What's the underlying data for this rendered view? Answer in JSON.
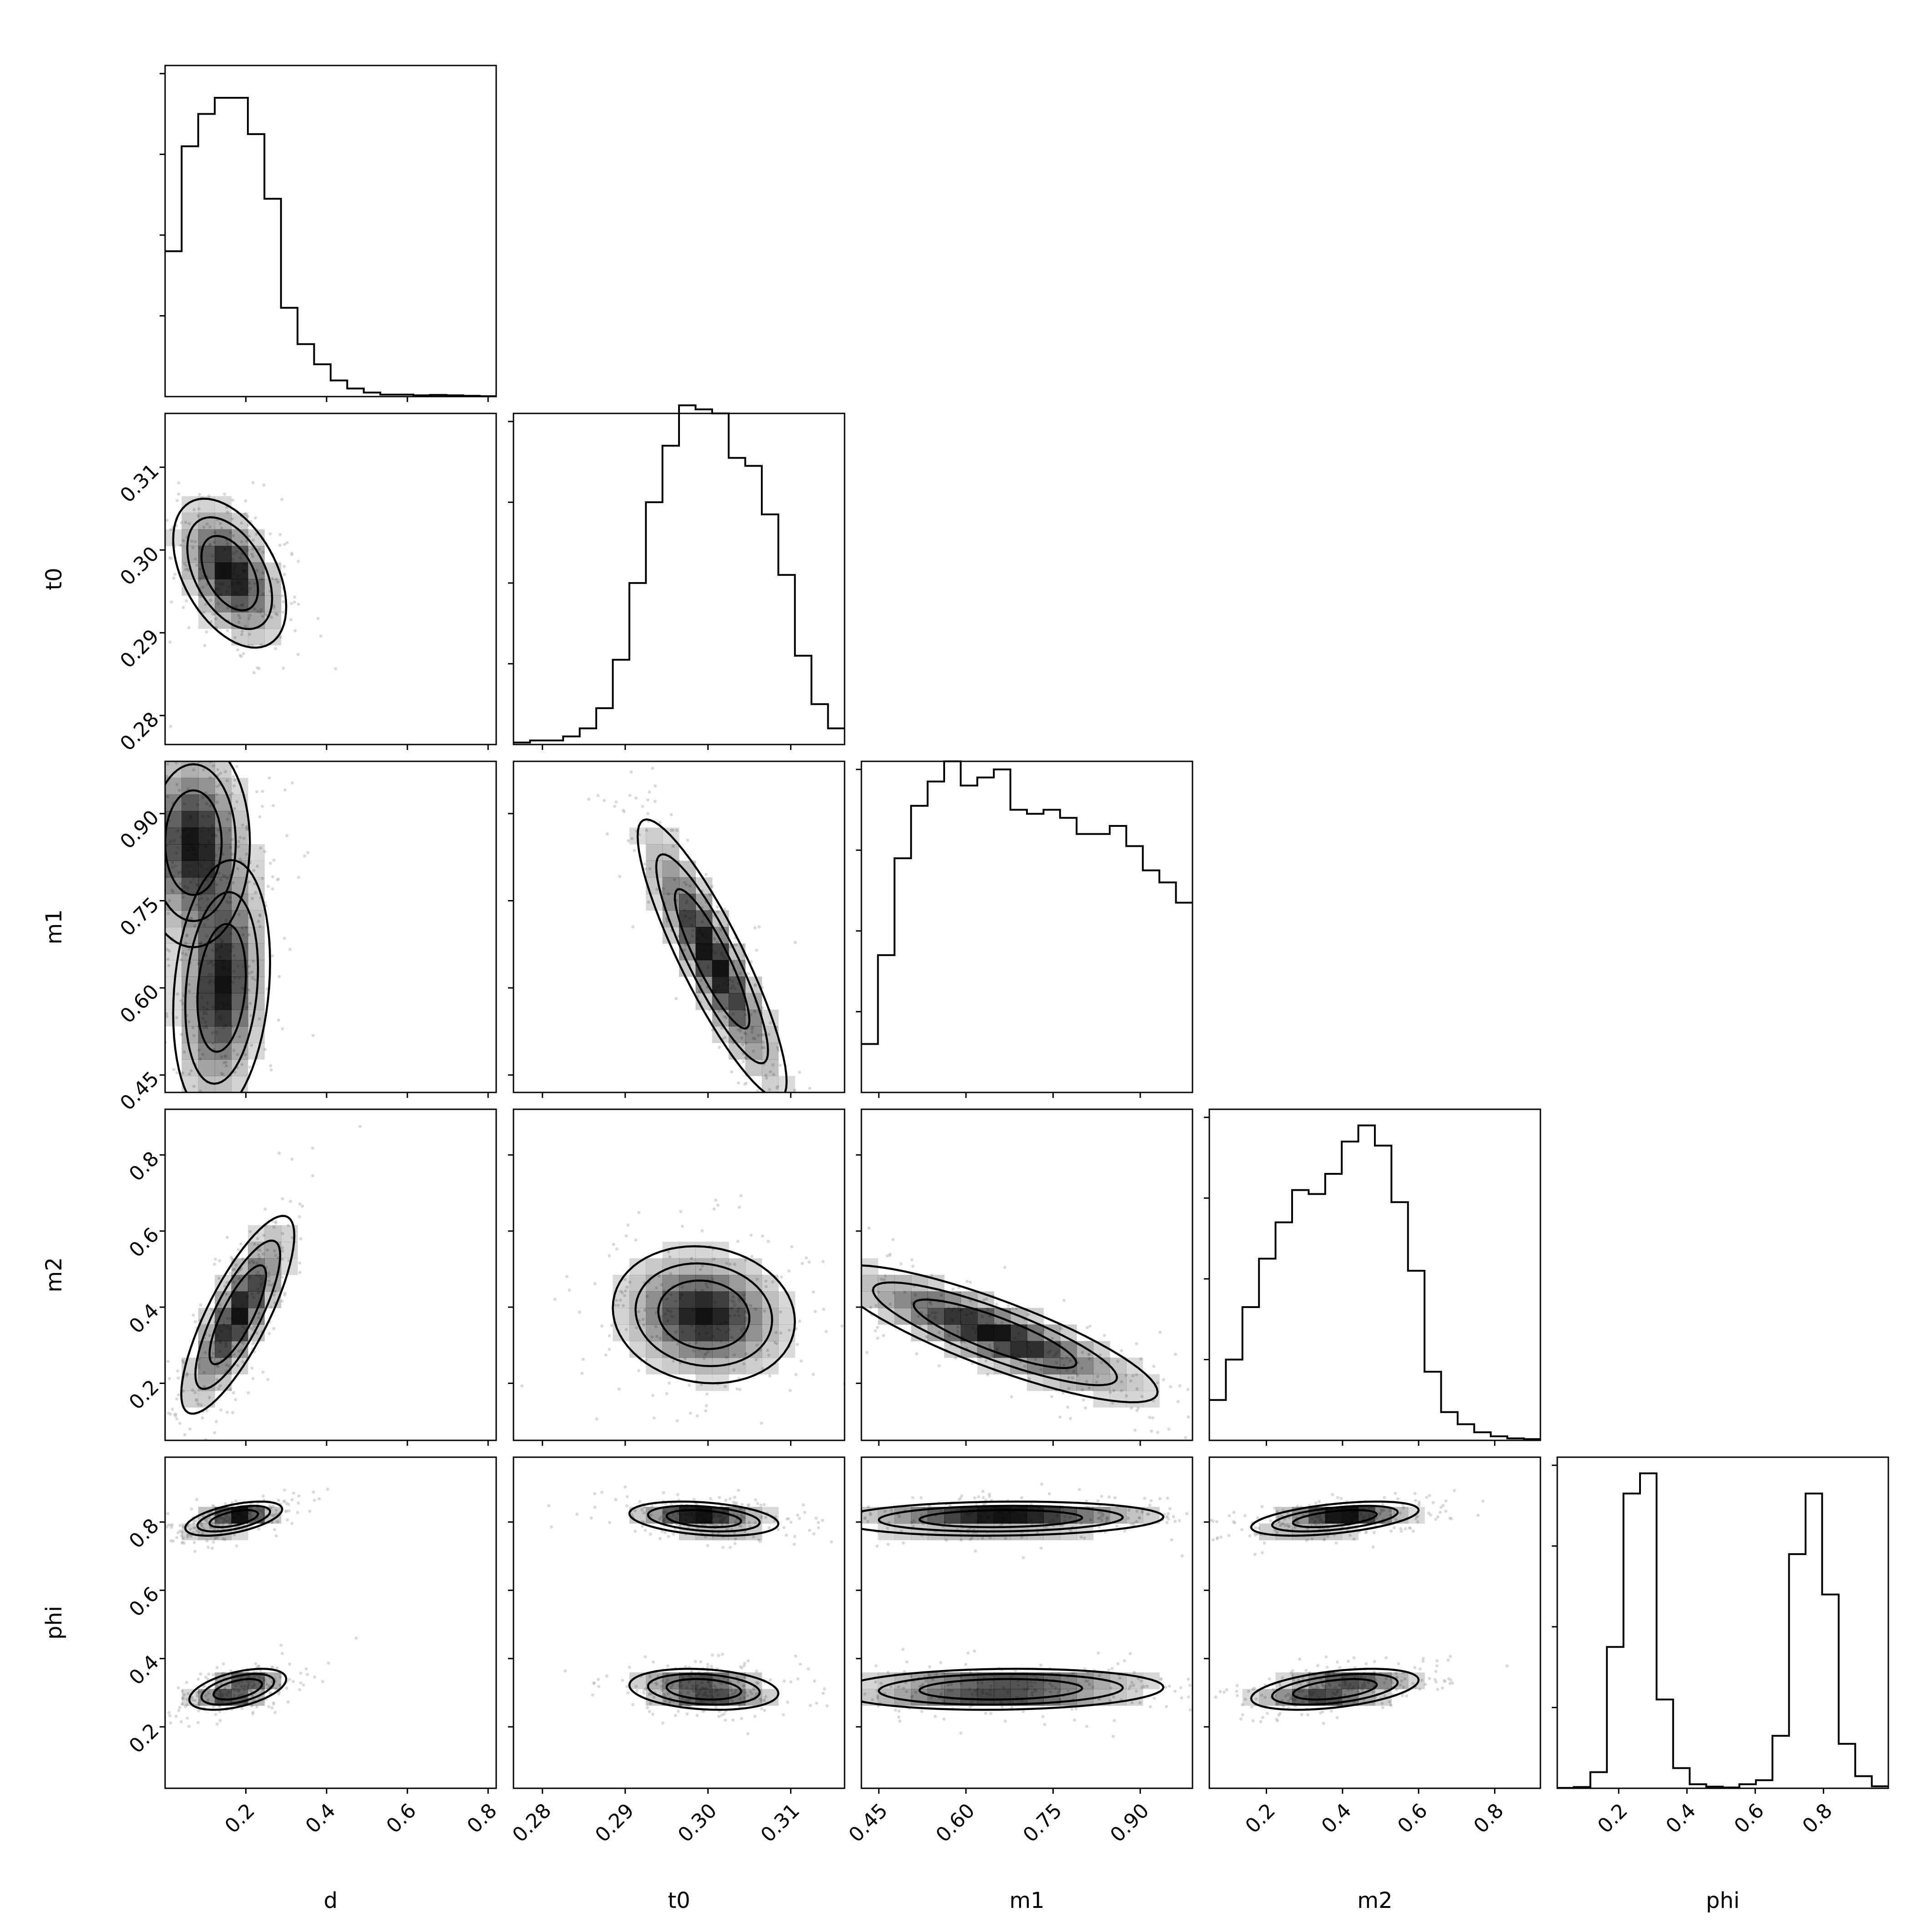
{
  "chart_data": {
    "type": "corner",
    "parameters": [
      "d",
      "t0",
      "m1",
      "m2",
      "phi"
    ],
    "axis_labels": [
      "d",
      "t0",
      "m1",
      "m2",
      "phi"
    ],
    "ranges": {
      "d": [
        0.0,
        0.82
      ],
      "t0": [
        0.2765,
        0.3165
      ],
      "m1": [
        0.42,
        0.99
      ],
      "m2": [
        0.05,
        0.92
      ],
      "phi": [
        0.02,
        0.99
      ]
    },
    "ticks": {
      "d": [
        "0.2",
        "0.4",
        "0.6",
        "0.8"
      ],
      "t0": [
        "0.28",
        "0.29",
        "0.30",
        "0.31"
      ],
      "m1": [
        "0.45",
        "0.60",
        "0.75",
        "0.90"
      ],
      "m2": [
        "0.2",
        "0.4",
        "0.6",
        "0.8"
      ],
      "phi": [
        "0.2",
        "0.4",
        "0.6",
        "0.8"
      ]
    },
    "tick_values": {
      "d": [
        0.2,
        0.4,
        0.6,
        0.8
      ],
      "t0": [
        0.28,
        0.29,
        0.3,
        0.31
      ],
      "m1": [
        0.45,
        0.6,
        0.75,
        0.9
      ],
      "m2": [
        0.2,
        0.4,
        0.6,
        0.8
      ],
      "phi": [
        0.2,
        0.4,
        0.6,
        0.8
      ]
    },
    "histograms": {
      "d": [
        0.36,
        0.62,
        0.7,
        0.74,
        0.74,
        0.65,
        0.49,
        0.22,
        0.13,
        0.08,
        0.04,
        0.02,
        0.01,
        0.005,
        0.005,
        0.003,
        0.004,
        0.003,
        0.002,
        0.001
      ],
      "t0": [
        0.005,
        0.01,
        0.01,
        0.02,
        0.04,
        0.09,
        0.21,
        0.4,
        0.6,
        0.74,
        0.84,
        0.83,
        0.82,
        0.71,
        0.69,
        0.57,
        0.42,
        0.22,
        0.1,
        0.04
      ],
      "m1": [
        0.12,
        0.34,
        0.58,
        0.71,
        0.77,
        0.82,
        0.76,
        0.78,
        0.8,
        0.7,
        0.69,
        0.7,
        0.68,
        0.64,
        0.64,
        0.66,
        0.61,
        0.55,
        0.52,
        0.47
      ],
      "m2": [
        0.1,
        0.2,
        0.33,
        0.45,
        0.54,
        0.62,
        0.61,
        0.66,
        0.74,
        0.78,
        0.73,
        0.59,
        0.42,
        0.17,
        0.07,
        0.04,
        0.02,
        0.01,
        0.005,
        0.003
      ],
      "phi": [
        0.001,
        0.003,
        0.04,
        0.35,
        0.73,
        0.78,
        0.22,
        0.05,
        0.01,
        0.004,
        0.002,
        0.01,
        0.02,
        0.13,
        0.58,
        0.73,
        0.48,
        0.11,
        0.03,
        0.005
      ]
    },
    "joint_modes": {
      "t0|d": [
        {
          "mx": 0.16,
          "my": 0.2972,
          "sx": 0.07,
          "sy": 0.0045,
          "rho": -0.45
        }
      ],
      "m1|d": [
        {
          "mx": 0.14,
          "my": 0.6,
          "sx": 0.06,
          "sy": 0.11,
          "rho": 0.2
        },
        {
          "mx": 0.07,
          "my": 0.85,
          "sx": 0.07,
          "sy": 0.09,
          "rho": 0.0
        }
      ],
      "m1|t0": [
        {
          "mx": 0.3005,
          "my": 0.65,
          "sx": 0.0045,
          "sy": 0.12,
          "rho": -0.88
        }
      ],
      "m2|d": [
        {
          "mx": 0.18,
          "my": 0.38,
          "sx": 0.07,
          "sy": 0.13,
          "rho": 0.8
        }
      ],
      "m2|t0": [
        {
          "mx": 0.2995,
          "my": 0.38,
          "sx": 0.0055,
          "sy": 0.09,
          "rho": -0.1
        }
      ],
      "m2|m1": [
        {
          "mx": 0.65,
          "my": 0.33,
          "sx": 0.14,
          "sy": 0.09,
          "rho": -0.85
        }
      ],
      "phi|d": [
        {
          "mx": 0.17,
          "my": 0.81,
          "sx": 0.06,
          "sy": 0.025,
          "rho": 0.55
        },
        {
          "mx": 0.18,
          "my": 0.31,
          "sx": 0.06,
          "sy": 0.03,
          "rho": 0.5
        }
      ],
      "phi|t0": [
        {
          "mx": 0.2995,
          "my": 0.81,
          "sx": 0.0045,
          "sy": 0.025,
          "rho": -0.3
        },
        {
          "mx": 0.2995,
          "my": 0.31,
          "sx": 0.0045,
          "sy": 0.03,
          "rho": -0.2
        }
      ],
      "phi|m1": [
        {
          "mx": 0.66,
          "my": 0.81,
          "sx": 0.14,
          "sy": 0.025,
          "rho": 0.1
        },
        {
          "mx": 0.66,
          "my": 0.31,
          "sx": 0.14,
          "sy": 0.03,
          "rho": 0.1
        }
      ],
      "phi|m2": [
        {
          "mx": 0.38,
          "my": 0.81,
          "sx": 0.11,
          "sy": 0.025,
          "rho": 0.5
        },
        {
          "mx": 0.38,
          "my": 0.31,
          "sx": 0.11,
          "sy": 0.03,
          "rho": 0.45
        }
      ]
    },
    "contour_levels": [
      "1-sigma",
      "1.5-sigma",
      "2-sigma"
    ],
    "colors": {
      "line": "#000000",
      "density": "#000000",
      "scatter": "#bbbbbb",
      "background": "#ffffff"
    },
    "grid": false,
    "legend": "none"
  }
}
